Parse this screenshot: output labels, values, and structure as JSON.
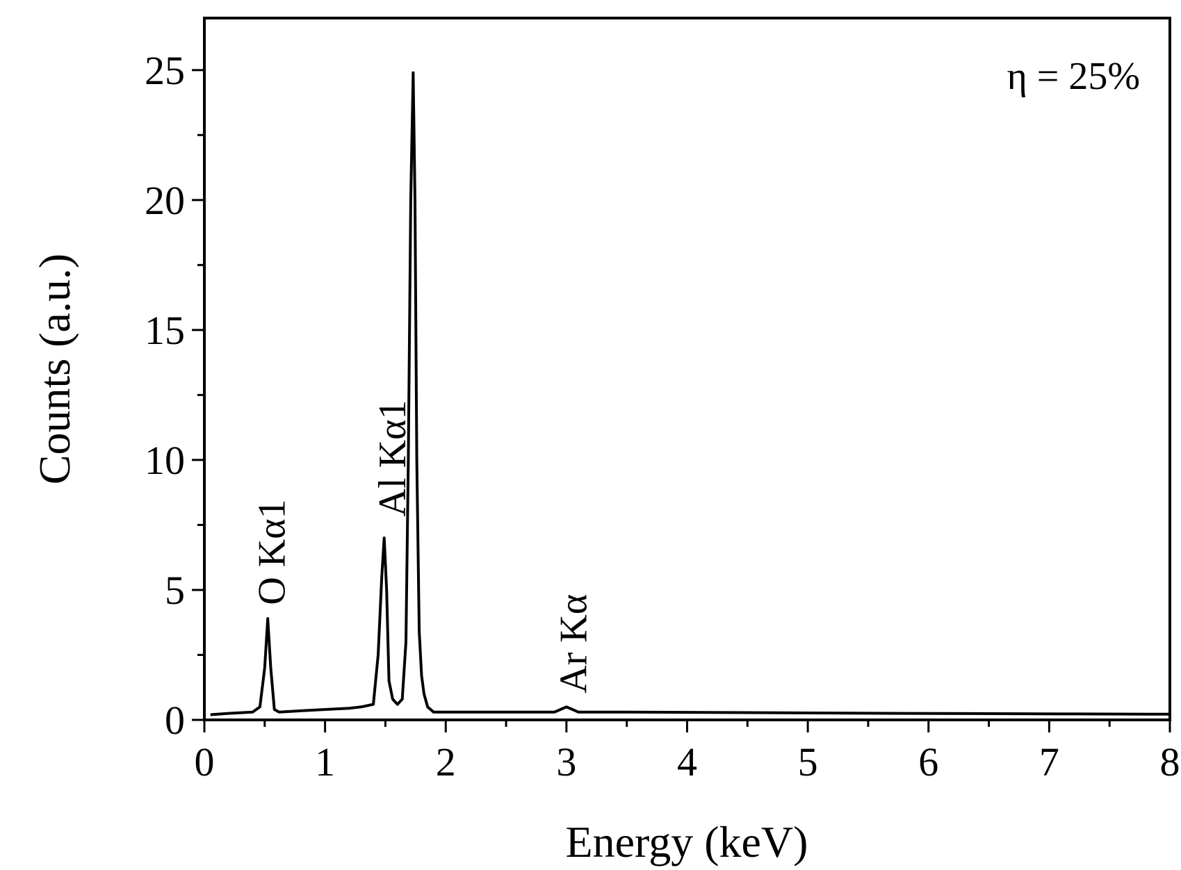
{
  "chart_data": {
    "type": "line",
    "title": "",
    "xlabel": "Energy (keV)",
    "ylabel": "Counts (a.u.)",
    "xlim": [
      0,
      8
    ],
    "ylim": [
      0,
      27
    ],
    "xticks": [
      "0",
      "1",
      "2",
      "3",
      "4",
      "5",
      "6",
      "7",
      "8"
    ],
    "yticks": [
      "0",
      "5",
      "10",
      "15",
      "20",
      "25"
    ],
    "annotation": "η = 25%",
    "peak_labels": [
      {
        "text": "O Kα1",
        "x": 0.55,
        "y": 4.1
      },
      {
        "text": "Al Kα1",
        "x": 1.55,
        "y": 7.5
      },
      {
        "text": "Ar Kα",
        "x": 3.05,
        "y": 0.7
      }
    ],
    "series": [
      {
        "x": [
          0.05,
          0.2,
          0.4,
          0.46,
          0.5,
          0.525,
          0.55,
          0.58,
          0.62,
          0.8,
          1.0,
          1.2,
          1.3,
          1.4,
          1.44,
          1.47,
          1.49,
          1.51,
          1.53,
          1.56,
          1.6,
          1.64,
          1.67,
          1.69,
          1.71,
          1.73,
          1.745,
          1.76,
          1.78,
          1.8,
          1.82,
          1.85,
          1.9,
          2.0,
          2.5,
          2.9,
          2.95,
          3.0,
          3.05,
          3.1,
          3.5,
          4.5,
          5.8,
          7.2,
          8.0
        ],
        "y": [
          0.2,
          0.25,
          0.3,
          0.5,
          2.0,
          3.9,
          2.0,
          0.4,
          0.3,
          0.35,
          0.4,
          0.45,
          0.5,
          0.6,
          2.5,
          5.5,
          7.0,
          5.0,
          1.5,
          0.8,
          0.6,
          0.8,
          3.0,
          10.0,
          20.0,
          24.9,
          20.0,
          10.0,
          3.4,
          1.7,
          1.0,
          0.5,
          0.3,
          0.3,
          0.3,
          0.3,
          0.4,
          0.5,
          0.4,
          0.3,
          0.3,
          0.28,
          0.25,
          0.23,
          0.22
        ]
      }
    ]
  }
}
